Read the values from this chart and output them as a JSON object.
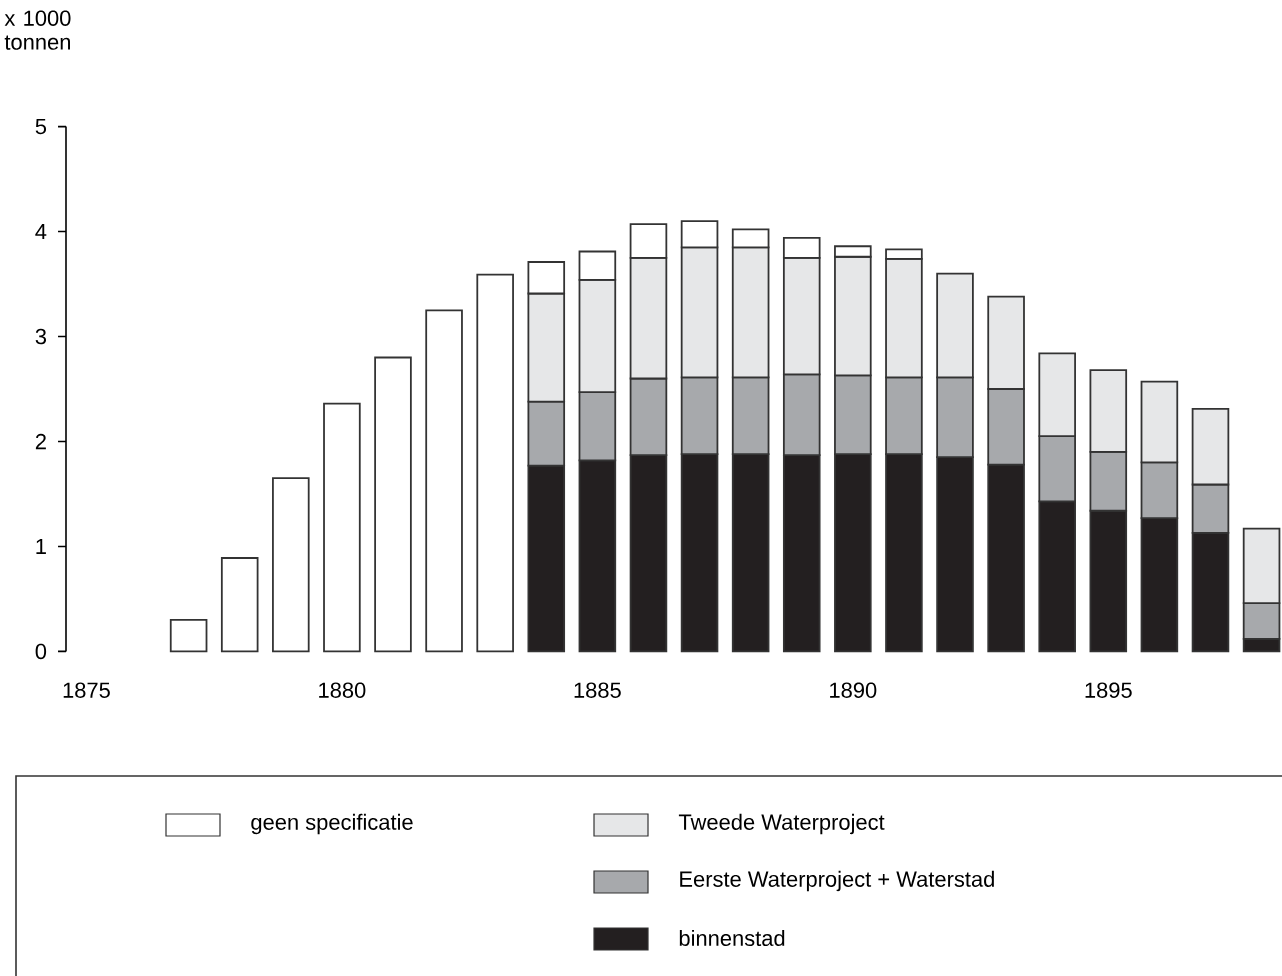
{
  "chart_data": {
    "type": "bar",
    "stacked": true,
    "ylabel": "x 1000 tonnen",
    "legend": "bottom",
    "x": [
      1877,
      1878,
      1879,
      1880,
      1881,
      1882,
      1883,
      1884,
      1885,
      1886,
      1887,
      1888,
      1889,
      1890,
      1891,
      1892,
      1893,
      1894,
      1895,
      1896,
      1897,
      1898
    ],
    "xlim": [
      1874.6,
      1898.4
    ],
    "xticks": [
      1875,
      1880,
      1885,
      1890,
      1895
    ],
    "ylim": [
      0,
      5
    ],
    "yticks": [
      0,
      1,
      2,
      3,
      4,
      5
    ],
    "series": [
      {
        "name": "binnenstad",
        "color": "#231f20",
        "values": [
          null,
          null,
          null,
          null,
          null,
          null,
          null,
          1.77,
          1.82,
          1.87,
          1.88,
          1.88,
          1.87,
          1.88,
          1.88,
          1.85,
          1.78,
          1.43,
          1.34,
          1.27,
          1.13,
          0.12
        ]
      },
      {
        "name": "Eerste Waterproject + Waterstad",
        "color": "#a7a9ac",
        "values": [
          null,
          null,
          null,
          null,
          null,
          null,
          null,
          0.61,
          0.65,
          0.73,
          0.73,
          0.73,
          0.77,
          0.75,
          0.73,
          0.76,
          0.72,
          0.62,
          0.56,
          0.53,
          0.46,
          0.34
        ]
      },
      {
        "name": "Tweede Waterproject",
        "color": "#e6e7e8",
        "values": [
          null,
          null,
          null,
          null,
          null,
          null,
          null,
          1.03,
          1.07,
          1.15,
          1.24,
          1.24,
          1.11,
          1.13,
          1.13,
          0.99,
          0.88,
          0.79,
          0.78,
          0.77,
          0.72,
          0.71
        ]
      },
      {
        "name": "geen specificatie",
        "color": "#ffffff",
        "values": [
          0.3,
          0.89,
          1.65,
          2.36,
          2.8,
          3.25,
          3.59,
          0.3,
          0.27,
          0.32,
          0.25,
          0.17,
          0.19,
          0.1,
          0.09,
          null,
          null,
          null,
          null,
          null,
          null,
          null
        ]
      }
    ]
  }
}
